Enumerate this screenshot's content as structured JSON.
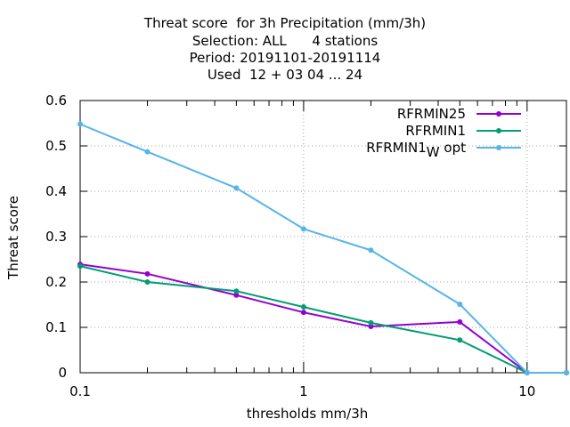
{
  "chart_data": {
    "type": "line",
    "title_lines": [
      "Threat score  for 3h Precipitation (mm/3h)",
      "Selection: ALL      4 stations",
      "Period: 20191101-20191114",
      "Used  12 + 03 04 ... 24"
    ],
    "xlabel": "thresholds mm/3h",
    "ylabel": "Threat score",
    "x_scale": "log",
    "xlim": [
      0.1,
      15
    ],
    "ylim": [
      0,
      0.6
    ],
    "x_tick_labels": [
      "0.1",
      "1",
      "10"
    ],
    "y_tick_labels": [
      "0",
      "0.1",
      "0.2",
      "0.3",
      "0.4",
      "0.5",
      "0.6"
    ],
    "grid": true,
    "legend_position": "top-right",
    "x": [
      0.1,
      0.2,
      0.5,
      1,
      2,
      5,
      10,
      15
    ],
    "series": [
      {
        "name": "RFRMIN25",
        "label_main": "RFRMIN25",
        "label_sub": "",
        "label_tail": "",
        "color": "#9400d3",
        "values": [
          0.239,
          0.218,
          0.171,
          0.133,
          0.102,
          0.112,
          0.0,
          0.0
        ]
      },
      {
        "name": "RFRMIN1",
        "label_main": "RFRMIN1",
        "label_sub": "",
        "label_tail": "",
        "color": "#009e73",
        "values": [
          0.235,
          0.2,
          0.18,
          0.145,
          0.11,
          0.072,
          0.0,
          0.0
        ]
      },
      {
        "name": "RFRMIN1_W opt",
        "label_main": "RFRMIN1",
        "label_sub": "W",
        "label_tail": " opt",
        "color": "#56b4e9",
        "values": [
          0.548,
          0.487,
          0.407,
          0.317,
          0.27,
          0.151,
          0.0,
          0.0
        ]
      }
    ]
  }
}
